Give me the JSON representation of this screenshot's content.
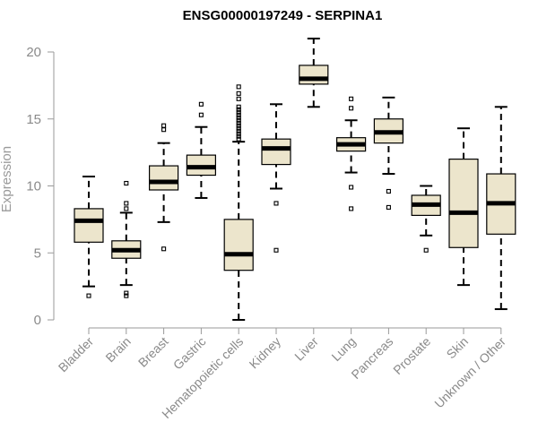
{
  "chart_data": {
    "type": "boxplot",
    "title": "ENSG00000197249 - SERPINA1",
    "xlabel": "",
    "ylabel": "Expression",
    "ylim": [
      0,
      21
    ],
    "yticks": [
      0,
      5,
      10,
      15,
      20
    ],
    "box_fill": "#ece5cc",
    "categories": [
      "Bladder",
      "Brain",
      "Breast",
      "Gastric",
      "Hematopoietic cells",
      "Kidney",
      "Liver",
      "Lung",
      "Pancreas",
      "Prostate",
      "Skin",
      "Unknown / Other"
    ],
    "series": [
      {
        "name": "Bladder",
        "whisker_low": 2.5,
        "q1": 5.8,
        "median": 7.4,
        "q3": 8.3,
        "whisker_high": 10.7,
        "outliers": [
          1.8
        ]
      },
      {
        "name": "Brain",
        "whisker_low": 2.6,
        "q1": 4.6,
        "median": 5.2,
        "q3": 5.9,
        "whisker_high": 8.0,
        "outliers": [
          10.2,
          8.7,
          8.3,
          2.0,
          1.8
        ]
      },
      {
        "name": "Breast",
        "whisker_low": 7.3,
        "q1": 9.7,
        "median": 10.3,
        "q3": 11.5,
        "whisker_high": 13.2,
        "outliers": [
          14.5,
          14.2,
          5.3
        ]
      },
      {
        "name": "Gastric",
        "whisker_low": 9.1,
        "q1": 10.8,
        "median": 11.4,
        "q3": 12.3,
        "whisker_high": 14.4,
        "outliers": [
          16.1,
          15.3
        ]
      },
      {
        "name": "Hematopoietic cells",
        "whisker_low": 0.0,
        "q1": 3.7,
        "median": 4.9,
        "q3": 7.5,
        "whisker_high": 13.3,
        "outliers": [
          13.5,
          13.7,
          13.9,
          14.1,
          14.3,
          14.5,
          14.7,
          14.9,
          15.1,
          15.3,
          15.5,
          15.7,
          15.9,
          16.5,
          16.9,
          17.4
        ]
      },
      {
        "name": "Kidney",
        "whisker_low": 9.8,
        "q1": 11.6,
        "median": 12.8,
        "q3": 13.5,
        "whisker_high": 16.1,
        "outliers": [
          8.7,
          5.2
        ]
      },
      {
        "name": "Liver",
        "whisker_low": 15.9,
        "q1": 17.6,
        "median": 18.0,
        "q3": 19.0,
        "whisker_high": 21.0,
        "outliers": []
      },
      {
        "name": "Lung",
        "whisker_low": 11.0,
        "q1": 12.6,
        "median": 13.1,
        "q3": 13.6,
        "whisker_high": 14.9,
        "outliers": [
          16.5,
          15.8,
          9.9,
          8.3
        ]
      },
      {
        "name": "Pancreas",
        "whisker_low": 10.9,
        "q1": 13.2,
        "median": 14.0,
        "q3": 15.0,
        "whisker_high": 16.6,
        "outliers": [
          9.6,
          8.4
        ]
      },
      {
        "name": "Prostate",
        "whisker_low": 6.3,
        "q1": 7.8,
        "median": 8.6,
        "q3": 9.3,
        "whisker_high": 10.0,
        "outliers": [
          5.2
        ]
      },
      {
        "name": "Skin",
        "whisker_low": 2.6,
        "q1": 5.4,
        "median": 8.0,
        "q3": 12.0,
        "whisker_high": 14.3,
        "outliers": []
      },
      {
        "name": "Unknown / Other",
        "whisker_low": 0.8,
        "q1": 6.4,
        "median": 8.7,
        "q3": 10.9,
        "whisker_high": 15.9,
        "outliers": []
      }
    ]
  }
}
